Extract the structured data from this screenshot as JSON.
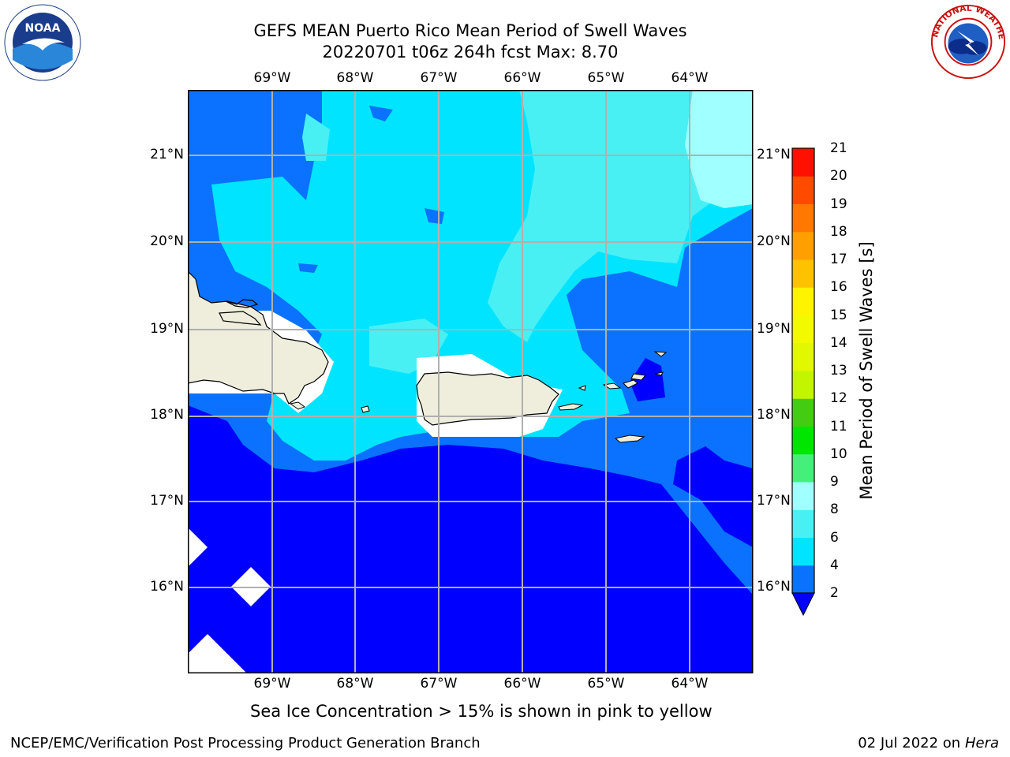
{
  "header": {
    "title_line1": "GEFS MEAN Puerto Rico Mean Period of Swell Waves",
    "title_line2": "20220701 t06z 264h fcst   Max: 8.70"
  },
  "map": {
    "lon_labels": [
      "69°W",
      "68°W",
      "67°W",
      "66°W",
      "65°W",
      "64°W"
    ],
    "lat_labels": [
      "21°N",
      "20°N",
      "19°N",
      "18°N",
      "17°N",
      "16°N"
    ],
    "colors": {
      "land": "#efeedd",
      "no_data": "#ffffff",
      "grid": "#b0b0b0"
    }
  },
  "colorbar": {
    "title": "Mean Period of Swell Waves [s]",
    "ticks": [
      "21",
      "20",
      "19",
      "18",
      "17",
      "16",
      "15",
      "14",
      "13",
      "12",
      "11",
      "10",
      "9",
      "8",
      "6",
      "4",
      "2"
    ],
    "levels": [
      {
        "from": 0,
        "to": 2,
        "color": "#0000ff"
      },
      {
        "from": 2,
        "to": 4,
        "color": "#0a72ff"
      },
      {
        "from": 4,
        "to": 6,
        "color": "#00e4ff"
      },
      {
        "from": 6,
        "to": 8,
        "color": "#48f0f4"
      },
      {
        "from": 8,
        "to": 9,
        "color": "#a0ffff"
      },
      {
        "from": 9,
        "to": 10,
        "color": "#44f07a"
      },
      {
        "from": 10,
        "to": 11,
        "color": "#00e600"
      },
      {
        "from": 11,
        "to": 12,
        "color": "#44cc12"
      },
      {
        "from": 12,
        "to": 13,
        "color": "#c4f500"
      },
      {
        "from": 13,
        "to": 14,
        "color": "#e2f800"
      },
      {
        "from": 14,
        "to": 15,
        "color": "#f3fa00"
      },
      {
        "from": 15,
        "to": 16,
        "color": "#fff400"
      },
      {
        "from": 16,
        "to": 17,
        "color": "#ffc200"
      },
      {
        "from": 17,
        "to": 18,
        "color": "#ffa000"
      },
      {
        "from": 18,
        "to": 19,
        "color": "#ff7800"
      },
      {
        "from": 19,
        "to": 20,
        "color": "#ff4a00"
      },
      {
        "from": 20,
        "to": 21,
        "color": "#ff1000"
      }
    ]
  },
  "note": "Sea Ice Concentration > 15% is shown in pink to yellow",
  "footer": {
    "left": "NCEP/EMC/Verification Post Processing Product Generation Branch",
    "date": "02 Jul 2022 on ",
    "machine": "Hera"
  },
  "logos": {
    "noaa_text": "NOAA",
    "nws_text": "NATIONAL WEATHER SERVICE"
  }
}
